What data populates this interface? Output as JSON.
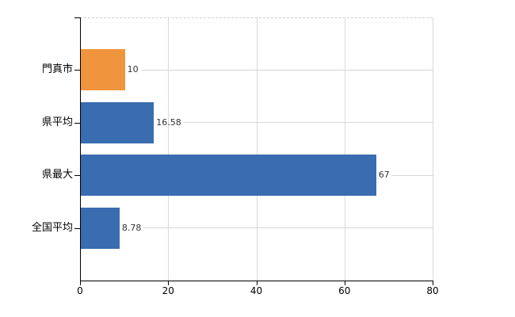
{
  "chart_data": {
    "type": "bar",
    "orientation": "horizontal",
    "title": "",
    "xlabel": "",
    "ylabel": "",
    "categories": [
      "門真市",
      "県平均",
      "県最大",
      "全国平均"
    ],
    "values": [
      10,
      16.58,
      67,
      8.78
    ],
    "value_labels": [
      "10",
      "16.58",
      "67",
      "8.78"
    ],
    "bar_colors": [
      "#f0943e",
      "#3a6cb0",
      "#3a6cb0",
      "#3a6cb0"
    ],
    "xlim": [
      0,
      80
    ],
    "x_ticks": [
      0,
      20,
      40,
      60,
      80
    ],
    "x_tick_labels": [
      "0",
      "20",
      "40",
      "60",
      "80"
    ],
    "grid": "vertical gridlines at x ticks, dashed top border",
    "legend": "none",
    "colors": {
      "highlight_bar": "#f0943e",
      "default_bar": "#3a6cb0",
      "gridline": "#dadada",
      "leader_line": "#d6d6d6",
      "axis": "#000000",
      "category_label": "#000000",
      "tick_label": "#000000",
      "value_label": "#333333",
      "background": "#ffffff"
    }
  }
}
